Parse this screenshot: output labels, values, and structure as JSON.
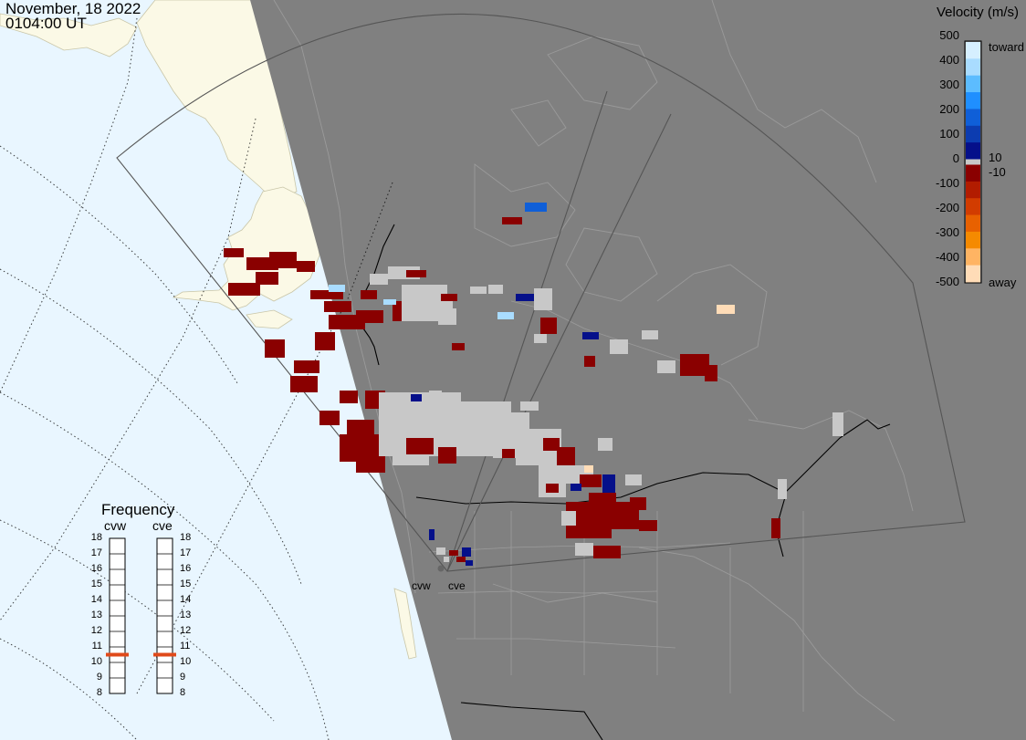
{
  "header": {
    "date": "November, 18 2022",
    "time": "0104:00 UT"
  },
  "colorbar": {
    "title": "Velocity (m/s)",
    "ticks": [
      "500",
      "400",
      "300",
      "200",
      "100",
      "0",
      "-100",
      "-200",
      "-300",
      "-400",
      "-500"
    ],
    "toward_label": "toward",
    "away_label": "away",
    "inner_pos": "10",
    "inner_neg": "-10",
    "colors_toward": [
      "#d6efff",
      "#a9dcff",
      "#5cbcff",
      "#1f8fff",
      "#0f5fd8",
      "#0c3cb0",
      "#05108a"
    ],
    "colors_away": [
      "#8a0000",
      "#b21c00",
      "#d23c00",
      "#e86100",
      "#f58a00",
      "#ffb463",
      "#ffdcb7"
    ],
    "ground_scatter_color": "#c8c8c8"
  },
  "frequency": {
    "title": "Frequency",
    "radars": [
      "cvw",
      "cve"
    ],
    "ticks": [
      "18",
      "17",
      "16",
      "15",
      "14",
      "13",
      "12",
      "11",
      "10",
      "9",
      "8"
    ],
    "current_mhz": [
      10.5,
      10.5
    ],
    "marker_color": "#e04a1a"
  },
  "stations": [
    "cvw",
    "cve"
  ],
  "map": {
    "night_color": "#808080",
    "ocean_color": "#e9f6ff",
    "land_day_color": "#fbf9e6",
    "border_color": "#000000",
    "coast_color": "#b9b9b9",
    "fov_color": "#555555"
  }
}
